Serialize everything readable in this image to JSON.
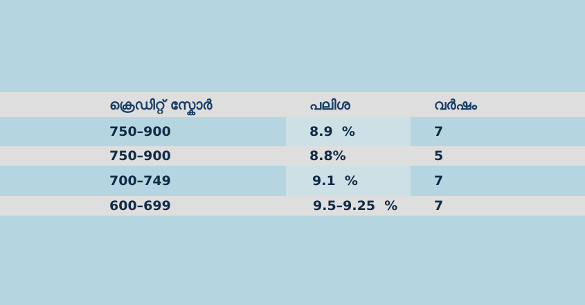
{
  "table": {
    "header": [
      "ക്രെഡിറ്റ് സ്കോർ",
      "പലിശ",
      "വർഷം"
    ],
    "rows": [
      [
        "750–900",
        "8.9  %",
        "7"
      ],
      [
        "750–900",
        "8.8%",
        "5"
      ],
      [
        "700–749",
        "9.1  %",
        "7"
      ],
      [
        "600–699",
        "9.5–9.25  %",
        "7"
      ]
    ]
  }
}
